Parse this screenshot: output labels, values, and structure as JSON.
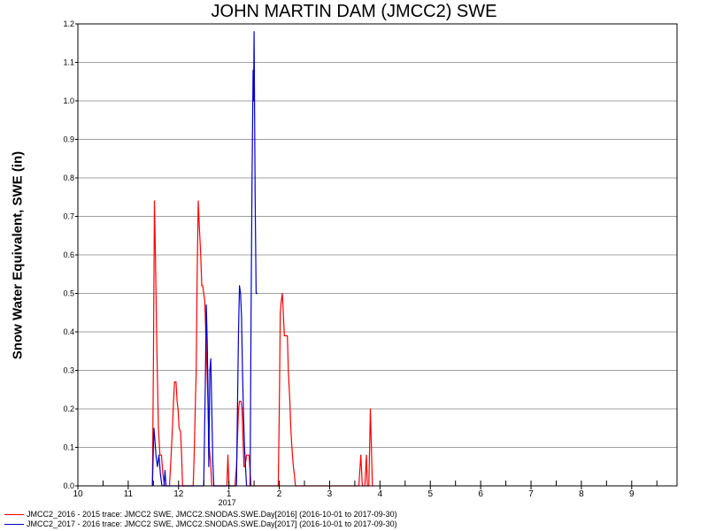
{
  "chart_data": {
    "type": "line",
    "title": "JOHN MARTIN DAM (JMCC2) SWE",
    "xlabel": "",
    "ylabel": "Snow Water Equivalent, SWE (in)",
    "year_label": "2017",
    "x_ticks": [
      "10",
      "11",
      "12",
      "1",
      "2",
      "3",
      "4",
      "5",
      "6",
      "7",
      "8",
      "9"
    ],
    "x_unit": "month index from October (0 = Oct 1, 3 = Jan 1)",
    "xlim": [
      0,
      11.9
    ],
    "ylim": [
      0,
      1.2
    ],
    "y_ticks": [
      "0.0",
      "0.1",
      "0.2",
      "0.3",
      "0.4",
      "0.5",
      "0.6",
      "0.7",
      "0.8",
      "0.9",
      "1.0",
      "1.1",
      "1.2"
    ],
    "grid": true,
    "legend_position": "bottom-left",
    "series": [
      {
        "name": "JMCC2_2016 - 2015 trace: JMCC2 SWE, JMCC2.SNODAS.SWE.Day[2016] (2016-10-01 to 2017-09-30)",
        "color": "#ff0000",
        "points": [
          [
            1.48,
            0
          ],
          [
            1.5,
            0.3
          ],
          [
            1.52,
            0.74
          ],
          [
            1.54,
            0.6
          ],
          [
            1.57,
            0.35
          ],
          [
            1.6,
            0.15
          ],
          [
            1.63,
            0.08
          ],
          [
            1.66,
            0.08
          ],
          [
            1.69,
            0.03
          ],
          [
            1.72,
            0
          ],
          [
            1.82,
            0
          ],
          [
            1.84,
            0.05
          ],
          [
            1.86,
            0.1
          ],
          [
            1.88,
            0.16
          ],
          [
            1.9,
            0.22
          ],
          [
            1.92,
            0.27
          ],
          [
            1.95,
            0.27
          ],
          [
            1.97,
            0.22
          ],
          [
            1.99,
            0.2
          ],
          [
            2.01,
            0.15
          ],
          [
            2.04,
            0.14
          ],
          [
            2.06,
            0.08
          ],
          [
            2.08,
            0
          ],
          [
            2.29,
            0
          ],
          [
            2.31,
            0.08
          ],
          [
            2.33,
            0.2
          ],
          [
            2.35,
            0.3
          ],
          [
            2.37,
            0.55
          ],
          [
            2.39,
            0.74
          ],
          [
            2.41,
            0.68
          ],
          [
            2.44,
            0.6
          ],
          [
            2.46,
            0.52
          ],
          [
            2.48,
            0.52
          ],
          [
            2.5,
            0.5
          ],
          [
            2.52,
            0.48
          ],
          [
            2.54,
            0.4
          ],
          [
            2.57,
            0.28
          ],
          [
            2.59,
            0.18
          ],
          [
            2.61,
            0.1
          ],
          [
            2.64,
            0.05
          ],
          [
            2.66,
            0
          ],
          [
            2.96,
            0
          ],
          [
            2.98,
            0.08
          ],
          [
            3.0,
            0
          ],
          [
            3.12,
            0
          ],
          [
            3.15,
            0.05
          ],
          [
            3.17,
            0.12
          ],
          [
            3.19,
            0.2
          ],
          [
            3.21,
            0.22
          ],
          [
            3.24,
            0.22
          ],
          [
            3.26,
            0.2
          ],
          [
            3.28,
            0.12
          ],
          [
            3.3,
            0.05
          ],
          [
            3.32,
            0.05
          ],
          [
            3.35,
            0.08
          ],
          [
            3.4,
            0.08
          ],
          [
            3.44,
            0
          ],
          [
            3.98,
            0
          ],
          [
            4.0,
            0.2
          ],
          [
            4.02,
            0.45
          ],
          [
            4.04,
            0.48
          ],
          [
            4.06,
            0.5
          ],
          [
            4.08,
            0.45
          ],
          [
            4.1,
            0.39
          ],
          [
            4.12,
            0.39
          ],
          [
            4.16,
            0.39
          ],
          [
            4.18,
            0.3
          ],
          [
            4.21,
            0.22
          ],
          [
            4.23,
            0.15
          ],
          [
            4.25,
            0.1
          ],
          [
            4.28,
            0.05
          ],
          [
            4.3,
            0.03
          ],
          [
            4.32,
            0
          ],
          [
            5.58,
            0
          ],
          [
            5.62,
            0.08
          ],
          [
            5.65,
            0
          ],
          [
            5.7,
            0
          ],
          [
            5.73,
            0.08
          ],
          [
            5.75,
            0
          ],
          [
            5.78,
            0
          ],
          [
            5.81,
            0.2
          ],
          [
            5.85,
            0
          ]
        ]
      },
      {
        "name": "JMCC2_2017 - 2016 trace: JMCC2 SWE, JMCC2.SNODAS.SWE.Day[2017] (2016-10-01 to 2017-09-30)",
        "color": "#0000cc",
        "points": [
          [
            1.48,
            0
          ],
          [
            1.51,
            0.15
          ],
          [
            1.53,
            0.12
          ],
          [
            1.55,
            0.08
          ],
          [
            1.58,
            0.05
          ],
          [
            1.61,
            0.08
          ],
          [
            1.64,
            0.03
          ],
          [
            1.67,
            0
          ],
          [
            1.71,
            0
          ],
          [
            1.73,
            0.04
          ],
          [
            1.75,
            0
          ],
          [
            2.5,
            0
          ],
          [
            2.53,
            0.25
          ],
          [
            2.55,
            0.47
          ],
          [
            2.57,
            0.37
          ],
          [
            2.59,
            0.2
          ],
          [
            2.6,
            0.05
          ],
          [
            2.62,
            0.3
          ],
          [
            2.64,
            0.33
          ],
          [
            2.66,
            0.2
          ],
          [
            2.68,
            0.06
          ],
          [
            2.7,
            0
          ],
          [
            3.15,
            0
          ],
          [
            3.17,
            0.2
          ],
          [
            3.19,
            0.4
          ],
          [
            3.21,
            0.52
          ],
          [
            3.23,
            0.5
          ],
          [
            3.25,
            0.44
          ],
          [
            3.27,
            0.3
          ],
          [
            3.29,
            0.18
          ],
          [
            3.31,
            0.1
          ],
          [
            3.33,
            0.05
          ],
          [
            3.35,
            0
          ],
          [
            3.42,
            0
          ],
          [
            3.44,
            0.45
          ],
          [
            3.46,
            0.8
          ],
          [
            3.48,
            1.08
          ],
          [
            3.49,
            1.0
          ],
          [
            3.5,
            1.18
          ],
          [
            3.52,
            0.75
          ],
          [
            3.54,
            0.5
          ],
          [
            3.57,
            0.5
          ]
        ]
      }
    ]
  }
}
